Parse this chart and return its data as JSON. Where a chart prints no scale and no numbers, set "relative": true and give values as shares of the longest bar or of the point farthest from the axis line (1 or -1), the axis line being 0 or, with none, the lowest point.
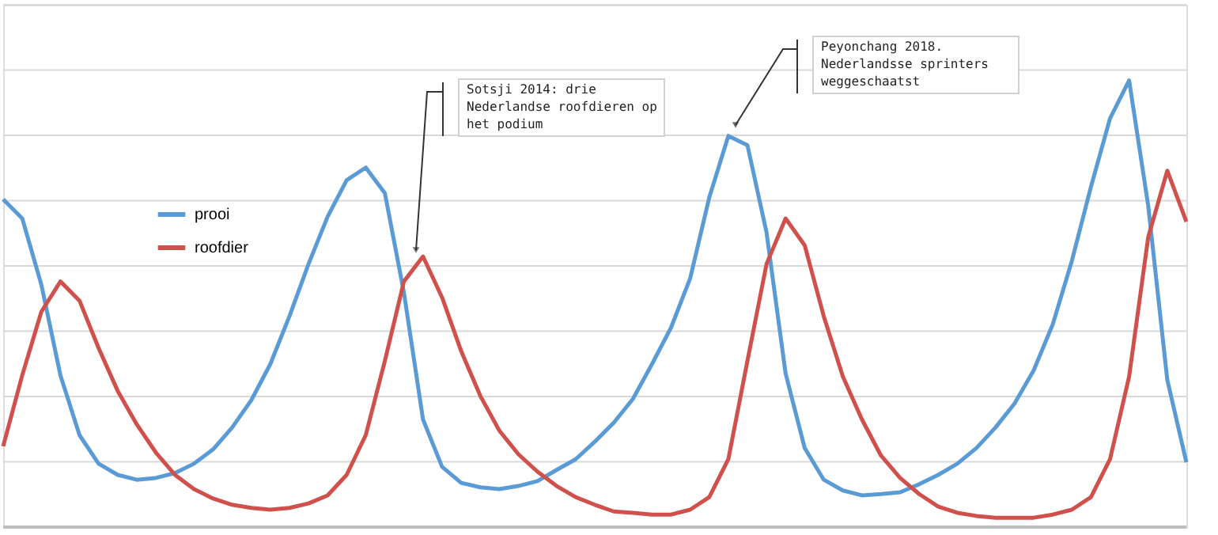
{
  "chart_data": {
    "type": "line",
    "relative": true,
    "grid": "y",
    "legend": "left",
    "line_style": "solid",
    "marker": "none",
    "categories": [
      null,
      null,
      null,
      null,
      null,
      null,
      null,
      null,
      null,
      null,
      null,
      null,
      null,
      null,
      null,
      null,
      null,
      null,
      null,
      null,
      null,
      null,
      null,
      null,
      null,
      null,
      null,
      null,
      null,
      null,
      null,
      null,
      null,
      null,
      null,
      null,
      null,
      null,
      null,
      null,
      null,
      null,
      null,
      null,
      null,
      null,
      null,
      null,
      null,
      null,
      null,
      null,
      null,
      null,
      null,
      null,
      null,
      null,
      null,
      null,
      null,
      null,
      null
    ],
    "series": [
      {
        "name": "prooi",
        "color": "#5b9bd5",
        "values": [
          0.734,
          0.691,
          0.543,
          0.34,
          0.206,
          0.142,
          0.117,
          0.106,
          0.11,
          0.121,
          0.142,
          0.174,
          0.223,
          0.284,
          0.365,
          0.472,
          0.589,
          0.695,
          0.777,
          0.805,
          0.748,
          0.525,
          0.241,
          0.135,
          0.099,
          0.089,
          0.085,
          0.092,
          0.103,
          0.128,
          0.152,
          0.191,
          0.234,
          0.287,
          0.365,
          0.447,
          0.557,
          0.738,
          0.876,
          0.855,
          0.66,
          0.344,
          0.177,
          0.106,
          0.082,
          0.071,
          0.074,
          0.078,
          0.096,
          0.117,
          0.142,
          0.177,
          0.223,
          0.277,
          0.351,
          0.454,
          0.596,
          0.762,
          0.915,
          1.0,
          0.72,
          0.33,
          0.145
        ]
      },
      {
        "name": "roofdier",
        "color": "#d0504c",
        "values": [
          0.181,
          0.34,
          0.482,
          0.55,
          0.507,
          0.401,
          0.305,
          0.23,
          0.167,
          0.117,
          0.085,
          0.064,
          0.05,
          0.043,
          0.039,
          0.043,
          0.053,
          0.071,
          0.117,
          0.206,
          0.372,
          0.55,
          0.606,
          0.514,
          0.394,
          0.294,
          0.216,
          0.163,
          0.124,
          0.092,
          0.067,
          0.05,
          0.035,
          0.032,
          0.028,
          0.028,
          0.039,
          0.067,
          0.152,
          0.372,
          0.589,
          0.691,
          0.631,
          0.472,
          0.337,
          0.241,
          0.16,
          0.11,
          0.074,
          0.046,
          0.032,
          0.025,
          0.021,
          0.021,
          0.021,
          0.028,
          0.039,
          0.067,
          0.152,
          0.337,
          0.649,
          0.798,
          0.684
        ]
      }
    ],
    "annotations": [
      "Sotsji 2014: drie\nNederlandse roofdieren op\nhet podium",
      "Peyonchang 2018.\nNederlandsse sprinters\nweggeschaatst"
    ]
  }
}
